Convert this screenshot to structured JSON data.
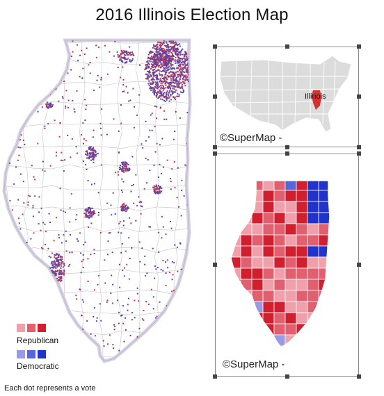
{
  "title": "2016 Illinois Election Map",
  "inset_us": {
    "state_label": "Illinois",
    "credit": "©SuperMap -"
  },
  "inset_il": {
    "credit": "©SuperMap -"
  },
  "legend": {
    "republican": {
      "label": "Republican",
      "colors": [
        "#f0a0aa",
        "#e06070",
        "#d02030"
      ]
    },
    "democratic": {
      "label": "Democratic",
      "colors": [
        "#9999e6",
        "#5566dd",
        "#2233cc"
      ]
    }
  },
  "footnote": "Each dot represents a vote",
  "colors": {
    "dot": "#6b3d8f",
    "boundary": "#c8c8c8",
    "us_state": "#dcdcdc",
    "highlight": "#d43232"
  }
}
